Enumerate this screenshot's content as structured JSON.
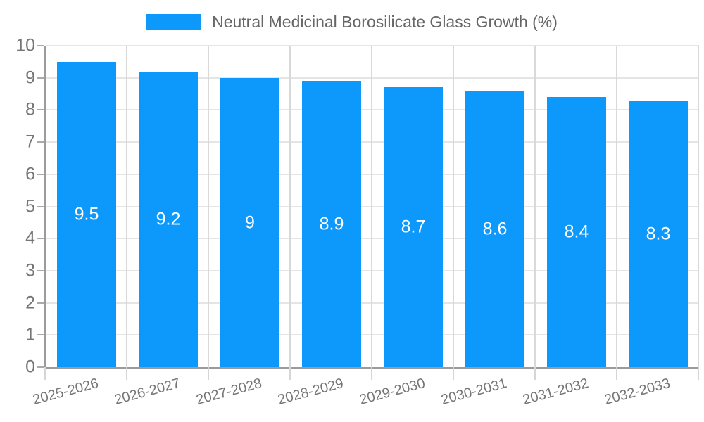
{
  "legend": {
    "label": "Neutral Medicinal Borosilicate Glass Growth (%)"
  },
  "chart_data": {
    "type": "bar",
    "title": "Neutral Medicinal Borosilicate Glass Growth (%)",
    "categories": [
      "2025-2026",
      "2026-2027",
      "2027-2028",
      "2028-2029",
      "2029-2030",
      "2030-2031",
      "2031-2032",
      "2032-2033"
    ],
    "values": [
      9.5,
      9.2,
      9,
      8.9,
      8.7,
      8.6,
      8.4,
      8.3
    ],
    "value_labels": [
      "9.5",
      "9.2",
      "9",
      "8.9",
      "8.7",
      "8.6",
      "8.4",
      "8.3"
    ],
    "xlabel": "",
    "ylabel": "",
    "ylim": [
      0,
      10
    ],
    "y_tick_step": 1,
    "y_tick_labels": [
      "0",
      "1",
      "2",
      "3",
      "4",
      "5",
      "6",
      "7",
      "8",
      "9",
      "10"
    ],
    "grid": true,
    "legend_position": "top",
    "x_label_rotation_deg": -15,
    "bar_color": "#0D99FB",
    "value_label_color": "#FFFFFF",
    "axis_label_color": "#757575",
    "legend_text_color": "#666666",
    "axis_line_color": "#9B9B9B",
    "gridline_color": "#E5E5E5",
    "background_color": "#FFFFFF"
  }
}
